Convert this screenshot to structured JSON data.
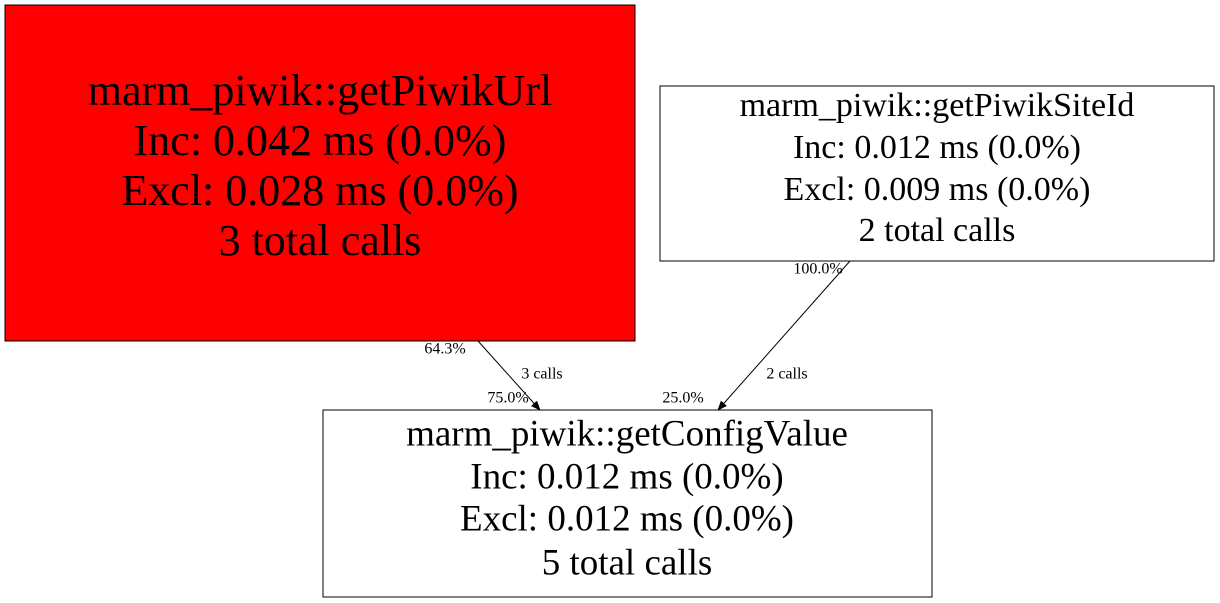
{
  "nodes": [
    {
      "name": "marm_piwik::getPiwikUrl",
      "inc": "Inc: 0.042 ms (0.0%)",
      "excl": "Excl: 0.028 ms (0.0%)",
      "calls": "3 total calls"
    },
    {
      "name": "marm_piwik::getPiwikSiteId",
      "inc": "Inc: 0.012 ms (0.0%)",
      "excl": "Excl: 0.009 ms (0.0%)",
      "calls": "2 total calls"
    },
    {
      "name": "marm_piwik::getConfigValue",
      "inc": "Inc: 0.012 ms (0.0%)",
      "excl": "Excl: 0.012 ms (0.0%)",
      "calls": "5 total calls"
    }
  ],
  "edges": [
    {
      "source_pct": "64.3%",
      "calls": "3 calls",
      "target_pct": "75.0%"
    },
    {
      "source_pct": "100.0%",
      "calls": "2 calls",
      "target_pct": "25.0%"
    }
  ]
}
